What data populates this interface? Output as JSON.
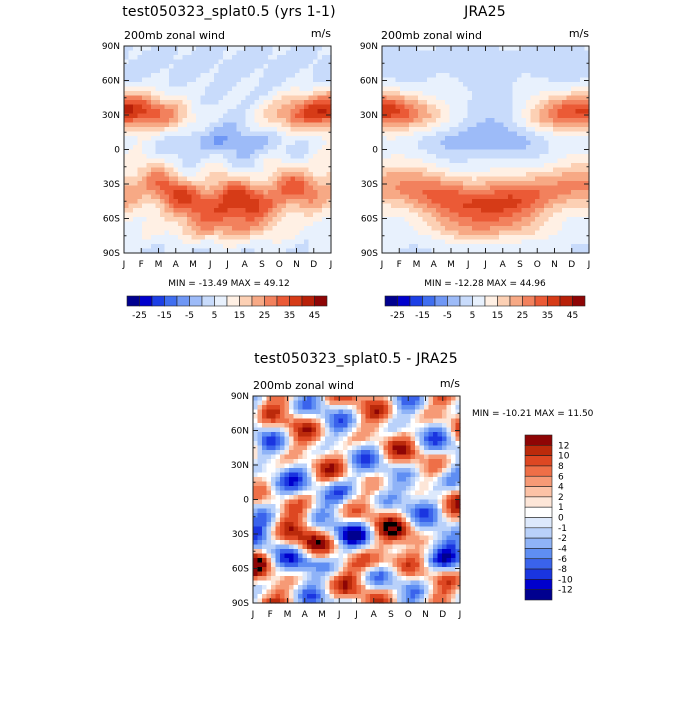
{
  "chart_data": [
    {
      "type": "heatmap",
      "title": "test050323_splat0.5 (yrs 1-1)",
      "subtitle_left": "200mb zonal wind",
      "subtitle_right": "m/s",
      "x_ticks": [
        "J",
        "F",
        "M",
        "A",
        "M",
        "J",
        "J",
        "A",
        "S",
        "O",
        "N",
        "D",
        "J"
      ],
      "y_ticks": [
        "90N",
        "60N",
        "30N",
        "0",
        "30S",
        "60S",
        "90S"
      ],
      "ylim": [
        -90,
        90
      ],
      "stats": "MIN = -13.49  MAX =  49.12",
      "colorbar_labels": [
        "-25",
        "-15",
        "-5",
        "5",
        "15",
        "25",
        "35",
        "45"
      ],
      "colorbar_levels": [
        -30,
        -25,
        -20,
        -15,
        -10,
        -5,
        0,
        5,
        10,
        15,
        20,
        25,
        30,
        35,
        40,
        45
      ],
      "colorbar_colors": [
        "#00008f",
        "#0000cd",
        "#1c3fe6",
        "#3f6ef0",
        "#6f97f5",
        "#9dbbf8",
        "#c8dbfb",
        "#e8f1fd",
        "#fff0e4",
        "#fcd0b4",
        "#f7a985",
        "#f2815d",
        "#eb5a36",
        "#d63b17",
        "#b82008",
        "#8e0505"
      ],
      "field": "model"
    },
    {
      "type": "heatmap",
      "title": "JRA25",
      "subtitle_left": "200mb zonal wind",
      "subtitle_right": "m/s",
      "x_ticks": [
        "J",
        "F",
        "M",
        "A",
        "M",
        "J",
        "J",
        "A",
        "S",
        "O",
        "N",
        "D",
        "J"
      ],
      "y_ticks": [
        "90N",
        "60N",
        "30N",
        "0",
        "30S",
        "60S",
        "90S"
      ],
      "ylim": [
        -90,
        90
      ],
      "stats": "MIN = -12.28  MAX =  44.96",
      "colorbar_labels": [
        "-25",
        "-15",
        "-5",
        "5",
        "15",
        "25",
        "35",
        "45"
      ],
      "colorbar_levels": [
        -30,
        -25,
        -20,
        -15,
        -10,
        -5,
        0,
        5,
        10,
        15,
        20,
        25,
        30,
        35,
        40,
        45
      ],
      "colorbar_colors": [
        "#00008f",
        "#0000cd",
        "#1c3fe6",
        "#3f6ef0",
        "#6f97f5",
        "#9dbbf8",
        "#c8dbfb",
        "#e8f1fd",
        "#fff0e4",
        "#fcd0b4",
        "#f7a985",
        "#f2815d",
        "#eb5a36",
        "#d63b17",
        "#b82008",
        "#8e0505"
      ],
      "field": "obs"
    },
    {
      "type": "heatmap",
      "title": "test050323_splat0.5 - JRA25",
      "subtitle_left": "200mb zonal wind",
      "subtitle_right": "m/s",
      "x_ticks": [
        "J",
        "F",
        "M",
        "A",
        "M",
        "J",
        "J",
        "A",
        "S",
        "O",
        "N",
        "D",
        "J"
      ],
      "y_ticks": [
        "90N",
        "60N",
        "30N",
        "0",
        "30S",
        "60S",
        "90S"
      ],
      "ylim": [
        -90,
        90
      ],
      "stats": "MIN = -10.21  MAX =  11.50",
      "colorbar_labels": [
        "12",
        "10",
        "8",
        "6",
        "4",
        "2",
        "1",
        "0",
        "-1",
        "-2",
        "-4",
        "-6",
        "-8",
        "-10",
        "-12"
      ],
      "colorbar_levels": [
        -14,
        -12,
        -10,
        -8,
        -6,
        -4,
        -2,
        -1,
        0,
        1,
        2,
        4,
        6,
        8,
        10,
        12,
        14
      ],
      "colorbar_colors": [
        "#00008f",
        "#0000cd",
        "#1a35e0",
        "#3a63ec",
        "#5f8ef3",
        "#8fb3f7",
        "#b9d1fa",
        "#dde9fc",
        "#ffffff",
        "#fde6d8",
        "#fcc2a6",
        "#f69a76",
        "#ee6f47",
        "#dd4722",
        "#bb2a0b",
        "#8e0505"
      ],
      "field": "diff"
    }
  ]
}
